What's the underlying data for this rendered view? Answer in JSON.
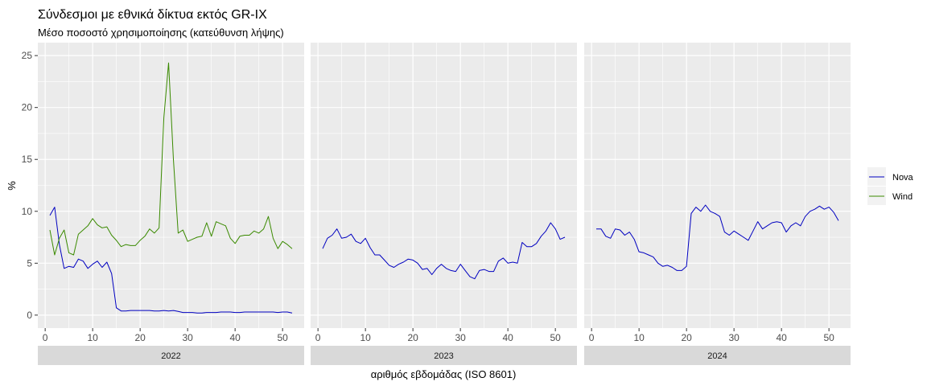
{
  "chart_data": {
    "type": "line",
    "title": "Σύνδεσμοι με εθνικά δίκτυα εκτός GR-IX",
    "subtitle": "Μέσο ποσοστό χρησιμοποίησης (κατεύθυνση λήψης)",
    "xlabel": "αριθμός εβδομάδας (ISO 8601)",
    "ylabel": "%",
    "ylim": [
      0,
      25
    ],
    "xlim": [
      1,
      52
    ],
    "x_ticks": [
      0,
      10,
      20,
      30,
      40,
      50
    ],
    "y_ticks": [
      0,
      5,
      10,
      15,
      20,
      25
    ],
    "grid": true,
    "legend_position": "right",
    "legend": [
      {
        "name": "Nova",
        "color": "#0000c0"
      },
      {
        "name": "Wind",
        "color": "#3a8a00"
      }
    ],
    "panels": [
      {
        "label": "2022",
        "series": [
          {
            "name": "Nova",
            "color": "#0000c0",
            "x": [
              1,
              2,
              3,
              4,
              5,
              6,
              7,
              8,
              9,
              10,
              11,
              12,
              13,
              14,
              15,
              16,
              17,
              18,
              19,
              20,
              21,
              22,
              23,
              24,
              25,
              26,
              27,
              28,
              29,
              30,
              31,
              32,
              33,
              34,
              35,
              36,
              37,
              38,
              39,
              40,
              41,
              42,
              43,
              44,
              45,
              46,
              47,
              48,
              49,
              50,
              51,
              52
            ],
            "values": [
              9.6,
              10.4,
              6.8,
              4.5,
              4.7,
              4.6,
              5.4,
              5.2,
              4.5,
              4.9,
              5.2,
              4.6,
              5.1,
              4.0,
              0.7,
              0.4,
              0.4,
              0.45,
              0.45,
              0.45,
              0.45,
              0.45,
              0.4,
              0.4,
              0.45,
              0.4,
              0.45,
              0.35,
              0.25,
              0.25,
              0.25,
              0.2,
              0.2,
              0.25,
              0.25,
              0.25,
              0.3,
              0.3,
              0.3,
              0.25,
              0.25,
              0.3,
              0.3,
              0.3,
              0.3,
              0.3,
              0.3,
              0.3,
              0.25,
              0.3,
              0.3,
              0.2
            ]
          },
          {
            "name": "Wind",
            "color": "#3a8a00",
            "x": [
              1,
              2,
              3,
              4,
              5,
              6,
              7,
              8,
              9,
              10,
              11,
              12,
              13,
              14,
              15,
              16,
              17,
              18,
              19,
              20,
              21,
              22,
              23,
              24,
              25,
              26,
              27,
              28,
              29,
              30,
              31,
              32,
              33,
              34,
              35,
              36,
              37,
              38,
              39,
              40,
              41,
              42,
              43,
              44,
              45,
              46,
              47,
              48,
              49,
              50,
              51,
              52
            ],
            "values": [
              8.2,
              5.8,
              7.4,
              8.2,
              6.0,
              5.8,
              7.8,
              8.2,
              8.6,
              9.3,
              8.7,
              8.4,
              8.5,
              7.7,
              7.2,
              6.6,
              6.8,
              6.7,
              6.7,
              7.2,
              7.6,
              8.3,
              7.9,
              8.4,
              19.0,
              24.3,
              15.0,
              7.9,
              8.2,
              7.1,
              7.3,
              7.5,
              7.6,
              8.9,
              7.6,
              9.0,
              8.8,
              8.6,
              7.4,
              6.9,
              7.6,
              7.7,
              7.7,
              8.1,
              7.9,
              8.3,
              9.5,
              7.4,
              6.4,
              7.1,
              6.8,
              6.4
            ]
          }
        ]
      },
      {
        "label": "2023",
        "series": [
          {
            "name": "Nova",
            "color": "#0000c0",
            "x": [
              1,
              2,
              3,
              4,
              5,
              6,
              7,
              8,
              9,
              10,
              11,
              12,
              13,
              14,
              15,
              16,
              17,
              18,
              19,
              20,
              21,
              22,
              23,
              24,
              25,
              26,
              27,
              28,
              29,
              30,
              31,
              32,
              33,
              34,
              35,
              36,
              37,
              38,
              39,
              40,
              41,
              42,
              43,
              44,
              45,
              46,
              47,
              48,
              49,
              50,
              51,
              52
            ],
            "values": [
              6.4,
              7.4,
              7.7,
              8.3,
              7.4,
              7.5,
              7.8,
              7.1,
              6.9,
              7.4,
              6.5,
              5.8,
              5.8,
              5.3,
              4.8,
              4.6,
              4.9,
              5.1,
              5.4,
              5.3,
              5.0,
              4.4,
              4.5,
              3.9,
              4.5,
              4.9,
              4.5,
              4.3,
              4.2,
              4.9,
              4.3,
              3.7,
              3.5,
              4.3,
              4.4,
              4.2,
              4.2,
              5.2,
              5.5,
              5.0,
              5.1,
              5.0,
              7.0,
              6.6,
              6.6,
              6.9,
              7.6,
              8.1,
              8.9,
              8.3,
              7.3,
              7.5
            ]
          }
        ]
      },
      {
        "label": "2024",
        "series": [
          {
            "name": "Nova",
            "color": "#0000c0",
            "x": [
              1,
              2,
              3,
              4,
              5,
              6,
              7,
              8,
              9,
              10,
              11,
              12,
              13,
              14,
              15,
              16,
              17,
              18,
              19,
              20,
              21,
              22,
              23,
              24,
              25,
              26,
              27,
              28,
              29,
              30,
              31,
              32,
              33,
              34,
              35,
              36,
              37,
              38,
              39,
              40,
              41,
              42,
              43,
              44,
              45,
              46,
              47,
              48,
              49,
              50,
              51,
              52
            ],
            "values": [
              8.3,
              8.3,
              7.6,
              7.4,
              8.3,
              8.2,
              7.7,
              8.0,
              7.3,
              6.1,
              6.0,
              5.8,
              5.6,
              5.0,
              4.7,
              4.8,
              4.6,
              4.3,
              4.3,
              4.7,
              9.8,
              10.4,
              10.0,
              10.6,
              10.0,
              9.8,
              9.5,
              8.0,
              7.7,
              8.1,
              7.8,
              7.5,
              7.2,
              8.1,
              9.0,
              8.3,
              8.6,
              8.9,
              9.0,
              8.9,
              8.0,
              8.6,
              8.9,
              8.6,
              9.5,
              10.0,
              10.2,
              10.5,
              10.2,
              10.4,
              9.9,
              9.1
            ]
          }
        ]
      }
    ]
  }
}
